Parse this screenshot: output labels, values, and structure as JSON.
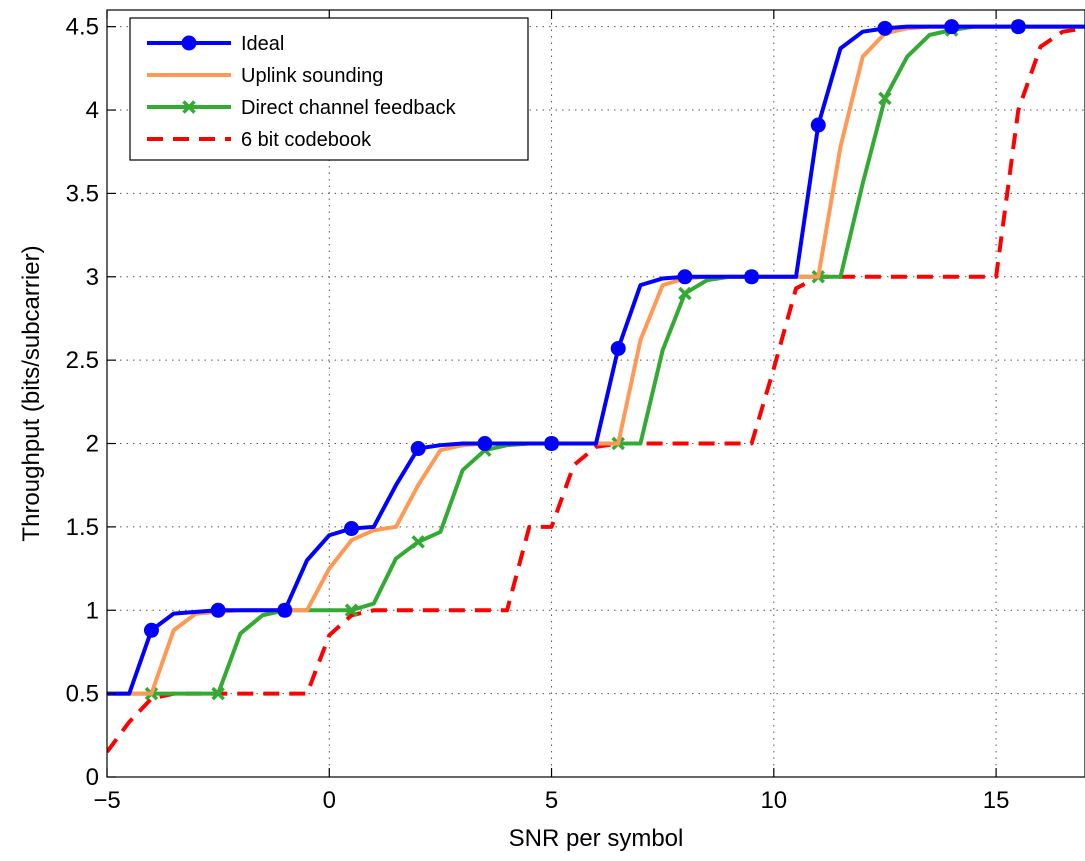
{
  "chart_data": {
    "type": "line",
    "xlabel": "SNR per symbol",
    "ylabel": "Throughput (bits/subcarrier)",
    "xlim": [
      -5,
      17
    ],
    "ylim": [
      0,
      4.6
    ],
    "xticks": [
      -5,
      0,
      5,
      10,
      15
    ],
    "xtick_labels": [
      "−5",
      "0",
      "5",
      "10",
      "15"
    ],
    "yticks": [
      0,
      0.5,
      1,
      1.5,
      2,
      2.5,
      3,
      3.5,
      4,
      4.5
    ],
    "ytick_labels": [
      "0",
      "0.5",
      "1",
      "1.5",
      "2",
      "2.5",
      "3",
      "3.5",
      "4",
      "4.5"
    ],
    "grid": true,
    "legend_position": "top-left",
    "series": [
      {
        "name": "Ideal",
        "color": "#0000ff",
        "style": "solid",
        "marker": "circle",
        "points": [
          [
            -5,
            0.5
          ],
          [
            -4.5,
            0.5
          ],
          [
            -4,
            0.88
          ],
          [
            -3.5,
            0.98
          ],
          [
            -3,
            0.99
          ],
          [
            -2.5,
            1.0
          ],
          [
            -2,
            1.0
          ],
          [
            -1.5,
            1.0
          ],
          [
            -1,
            1.0
          ],
          [
            -0.5,
            1.3
          ],
          [
            0,
            1.45
          ],
          [
            0.5,
            1.49
          ],
          [
            1,
            1.5
          ],
          [
            1.5,
            1.75
          ],
          [
            2,
            1.97
          ],
          [
            2.5,
            1.99
          ],
          [
            3,
            2.0
          ],
          [
            3.5,
            2.0
          ],
          [
            4,
            2.0
          ],
          [
            4.5,
            2.0
          ],
          [
            5,
            2.0
          ],
          [
            5.5,
            2.0
          ],
          [
            6,
            2.0
          ],
          [
            6.5,
            2.57
          ],
          [
            7,
            2.95
          ],
          [
            7.5,
            2.99
          ],
          [
            8,
            3.0
          ],
          [
            8.5,
            3.0
          ],
          [
            9,
            3.0
          ],
          [
            9.5,
            3.0
          ],
          [
            10,
            3.0
          ],
          [
            10.5,
            3.0
          ],
          [
            11,
            3.91
          ],
          [
            11.5,
            4.37
          ],
          [
            12,
            4.47
          ],
          [
            12.5,
            4.49
          ],
          [
            13,
            4.5
          ],
          [
            13.5,
            4.5
          ],
          [
            14,
            4.5
          ],
          [
            14.5,
            4.5
          ],
          [
            15,
            4.5
          ],
          [
            15.5,
            4.5
          ],
          [
            16,
            4.5
          ],
          [
            16.5,
            4.5
          ],
          [
            17,
            4.5
          ]
        ],
        "marker_x": [
          -4,
          -2.5,
          -1,
          0.5,
          2,
          3.5,
          5,
          6.5,
          8,
          9.5,
          11,
          12.5,
          14,
          15.5
        ]
      },
      {
        "name": "Uplink sounding",
        "color": "#ff9955",
        "style": "solid",
        "marker": "none",
        "points": [
          [
            -5,
            0.5
          ],
          [
            -4,
            0.5
          ],
          [
            -3.5,
            0.88
          ],
          [
            -3,
            0.98
          ],
          [
            -2.5,
            0.99
          ],
          [
            -2,
            1.0
          ],
          [
            -1.5,
            1.0
          ],
          [
            -1,
            1.0
          ],
          [
            -0.5,
            1.0
          ],
          [
            0,
            1.25
          ],
          [
            0.5,
            1.42
          ],
          [
            1,
            1.48
          ],
          [
            1.5,
            1.5
          ],
          [
            2,
            1.75
          ],
          [
            2.5,
            1.96
          ],
          [
            3,
            1.99
          ],
          [
            3.5,
            2.0
          ],
          [
            4,
            2.0
          ],
          [
            6,
            2.0
          ],
          [
            6.5,
            2.0
          ],
          [
            7,
            2.62
          ],
          [
            7.5,
            2.95
          ],
          [
            8,
            2.99
          ],
          [
            8.5,
            3.0
          ],
          [
            9,
            3.0
          ],
          [
            10.5,
            3.0
          ],
          [
            11,
            3.0
          ],
          [
            11.5,
            3.78
          ],
          [
            12,
            4.32
          ],
          [
            12.5,
            4.46
          ],
          [
            13,
            4.49
          ],
          [
            13.5,
            4.5
          ],
          [
            17,
            4.5
          ]
        ],
        "marker_x": []
      },
      {
        "name": "Direct channel feedback",
        "color": "#33aa33",
        "style": "solid",
        "marker": "x",
        "points": [
          [
            -5,
            0.5
          ],
          [
            -4.5,
            0.5
          ],
          [
            -4,
            0.5
          ],
          [
            -3.5,
            0.5
          ],
          [
            -3,
            0.5
          ],
          [
            -2.5,
            0.5
          ],
          [
            -2,
            0.86
          ],
          [
            -1.5,
            0.97
          ],
          [
            -1,
            1.0
          ],
          [
            -0.5,
            1.0
          ],
          [
            0,
            1.0
          ],
          [
            0.5,
            1.0
          ],
          [
            1,
            1.04
          ],
          [
            1.5,
            1.31
          ],
          [
            2,
            1.41
          ],
          [
            2.5,
            1.47
          ],
          [
            3,
            1.84
          ],
          [
            3.5,
            1.96
          ],
          [
            4,
            1.99
          ],
          [
            4.5,
            2.0
          ],
          [
            5,
            2.0
          ],
          [
            5.5,
            2.0
          ],
          [
            6,
            2.0
          ],
          [
            6.5,
            2.0
          ],
          [
            7,
            2.0
          ],
          [
            7.5,
            2.56
          ],
          [
            8,
            2.9
          ],
          [
            8.5,
            2.98
          ],
          [
            9,
            3.0
          ],
          [
            9.5,
            3.0
          ],
          [
            10,
            3.0
          ],
          [
            10.5,
            3.0
          ],
          [
            11,
            3.0
          ],
          [
            11.5,
            3.0
          ],
          [
            12,
            3.56
          ],
          [
            12.5,
            4.07
          ],
          [
            13,
            4.32
          ],
          [
            13.5,
            4.45
          ],
          [
            14,
            4.48
          ],
          [
            14.5,
            4.5
          ],
          [
            15,
            4.5
          ],
          [
            15.5,
            4.5
          ],
          [
            16,
            4.5
          ],
          [
            16.5,
            4.5
          ],
          [
            17,
            4.5
          ]
        ],
        "marker_x": [
          -4,
          -2.5,
          -1,
          0.5,
          2,
          3.5,
          5,
          6.5,
          8,
          9.5,
          11,
          12.5,
          14,
          15.5
        ]
      },
      {
        "name": "6 bit codebook",
        "color": "#ff0000",
        "style": "dashed",
        "marker": "none",
        "points": [
          [
            -5,
            0.15
          ],
          [
            -4.5,
            0.33
          ],
          [
            -4,
            0.47
          ],
          [
            -3.5,
            0.5
          ],
          [
            -3,
            0.5
          ],
          [
            -0.5,
            0.5
          ],
          [
            0,
            0.85
          ],
          [
            0.5,
            0.97
          ],
          [
            1,
            1.0
          ],
          [
            1.5,
            1.0
          ],
          [
            4,
            1.0
          ],
          [
            4.5,
            1.5
          ],
          [
            5,
            1.5
          ],
          [
            5.5,
            1.87
          ],
          [
            6,
            1.98
          ],
          [
            6.5,
            2.0
          ],
          [
            9.5,
            2.0
          ],
          [
            10,
            2.45
          ],
          [
            10.5,
            2.93
          ],
          [
            11,
            3.0
          ],
          [
            15,
            3.0
          ],
          [
            15.5,
            4.0
          ],
          [
            16,
            4.38
          ],
          [
            16.5,
            4.47
          ],
          [
            17,
            4.49
          ]
        ],
        "marker_x": []
      }
    ]
  }
}
